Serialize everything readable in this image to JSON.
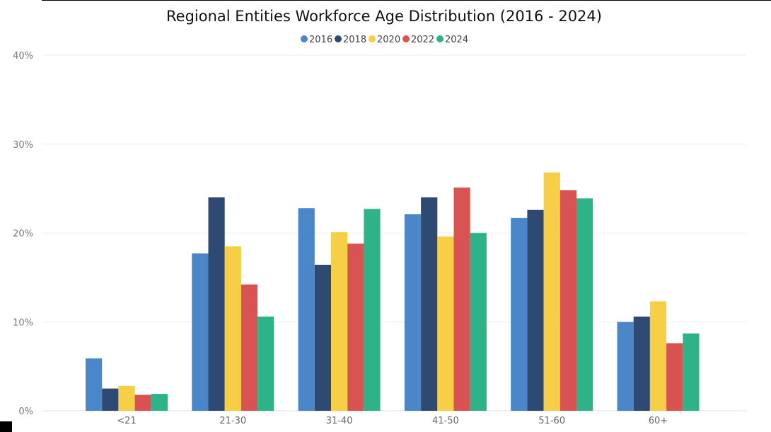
{
  "chart_data": {
    "type": "bar",
    "title": "Regional Entities Workforce Age Distribution (2016 - 2024)",
    "xlabel": "",
    "ylabel": "",
    "categories": [
      "<21",
      "21-30",
      "31-40",
      "41-50",
      "51-60",
      "60+"
    ],
    "series": [
      {
        "name": "2016",
        "color": "#4A86C8",
        "values": [
          5.9,
          17.7,
          22.8,
          22.1,
          21.7,
          10.0
        ]
      },
      {
        "name": "2018",
        "color": "#2E4A73",
        "values": [
          2.5,
          24.0,
          16.4,
          24.0,
          22.6,
          10.6
        ]
      },
      {
        "name": "2020",
        "color": "#F7CF46",
        "values": [
          2.8,
          18.5,
          20.1,
          19.6,
          26.8,
          12.3
        ]
      },
      {
        "name": "2022",
        "color": "#D95353",
        "values": [
          1.8,
          14.2,
          18.8,
          25.1,
          24.8,
          7.6
        ]
      },
      {
        "name": "2024",
        "color": "#2DB387",
        "values": [
          1.9,
          10.6,
          22.7,
          20.0,
          23.9,
          8.7
        ]
      }
    ],
    "ylim": [
      0,
      40
    ],
    "yticks": [
      "0%",
      "10%",
      "20%",
      "30%",
      "40%"
    ],
    "ytick_values": [
      0,
      10,
      20,
      30,
      40
    ],
    "grid": true,
    "legend_position": "top-center"
  }
}
